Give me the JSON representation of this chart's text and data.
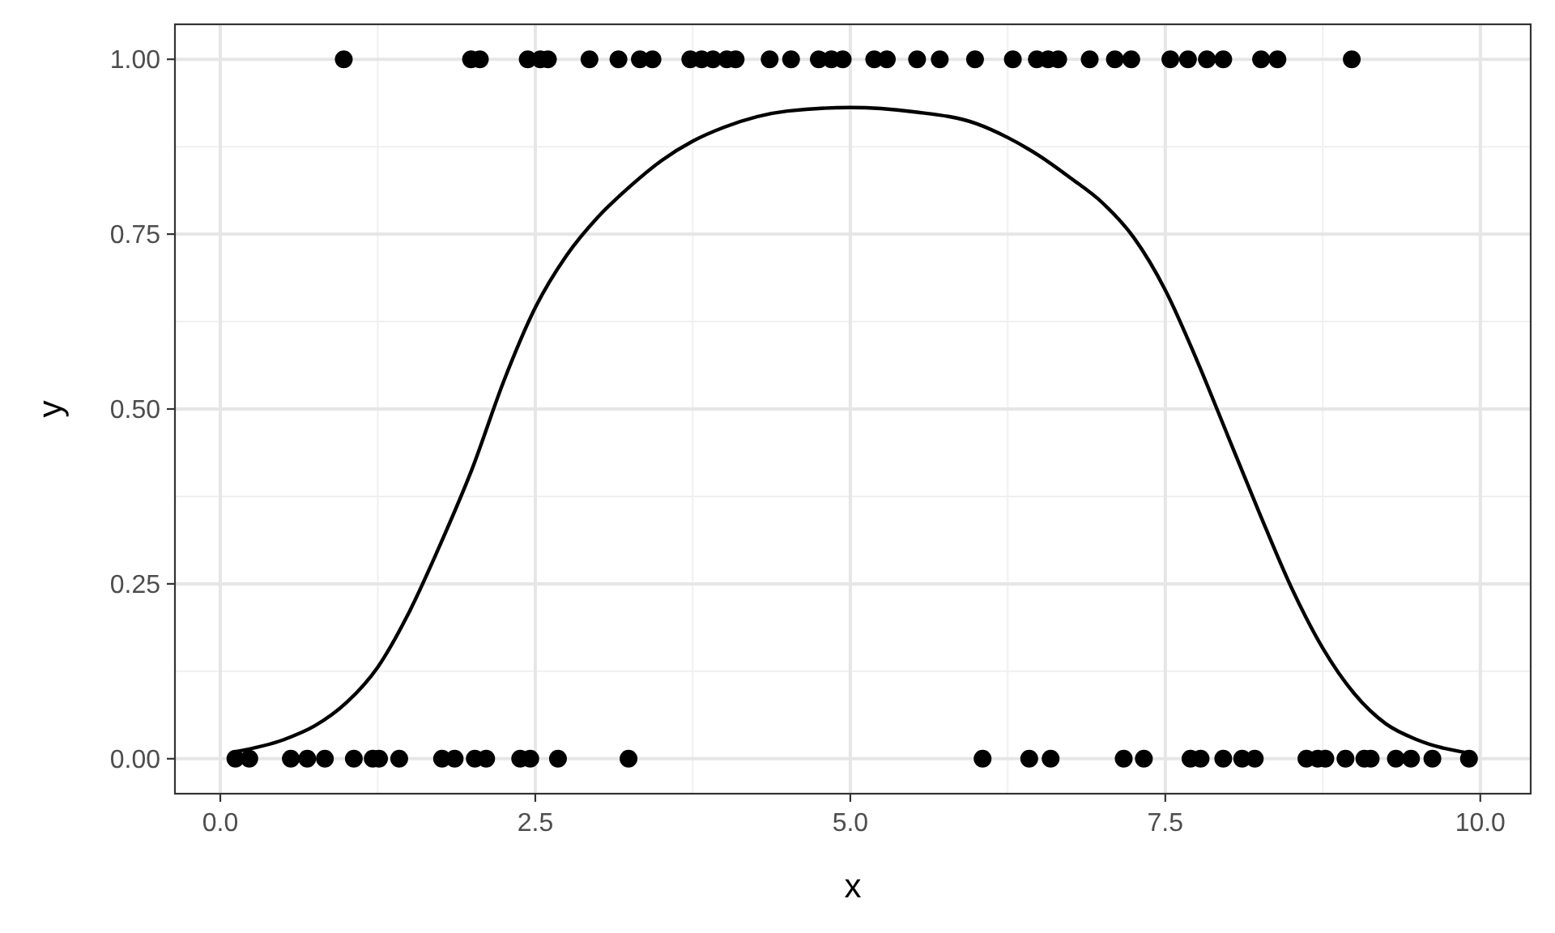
{
  "chart_data": {
    "type": "scatter",
    "xlabel": "x",
    "ylabel": "y",
    "xlim": [
      -0.36,
      10.4
    ],
    "ylim": [
      -0.05,
      1.05
    ],
    "xticks": [
      {
        "value": 0,
        "label": "0.0"
      },
      2.5,
      {
        "value": 5,
        "label": "5.0"
      },
      7.5,
      {
        "value": 10,
        "label": "10.0"
      }
    ],
    "yticks": [
      {
        "value": 0,
        "label": "0.00"
      },
      {
        "value": 0.25,
        "label": "0.25"
      },
      {
        "value": 0.5,
        "label": "0.50"
      },
      {
        "value": 0.75,
        "label": "0.75"
      },
      {
        "value": 1,
        "label": "1.00"
      }
    ],
    "grid": true,
    "series": [
      {
        "color": "#000000",
        "marker": "circle",
        "x": [
          0.12,
          0.23,
          0.56,
          0.69,
          0.83,
          1.06,
          1.21,
          1.26,
          1.42,
          1.76,
          1.86,
          2.02,
          2.11,
          2.38,
          2.46,
          2.68,
          3.24,
          6.05,
          6.42,
          6.59,
          7.17,
          7.33,
          7.7,
          7.78,
          7.96,
          8.11,
          8.21,
          8.62,
          8.71,
          8.77,
          8.93,
          9.08,
          9.13,
          9.33,
          9.45,
          9.62,
          9.91,
          0.98,
          1.99,
          2.06,
          2.44,
          2.54,
          2.6,
          2.93,
          3.16,
          3.33,
          3.43,
          3.73,
          3.82,
          3.91,
          4.02,
          4.09,
          4.36,
          4.53,
          4.75,
          4.85,
          4.94,
          5.19,
          5.29,
          5.53,
          5.71,
          5.99,
          6.29,
          6.48,
          6.57,
          6.65,
          6.9,
          7.1,
          7.23,
          7.54,
          7.68,
          7.83,
          7.96,
          8.26,
          8.39,
          8.98
        ],
        "values": [
          0,
          0,
          0,
          0,
          0,
          0,
          0,
          0,
          0,
          0,
          0,
          0,
          0,
          0,
          0,
          0,
          0,
          0,
          0,
          0,
          0,
          0,
          0,
          0,
          0,
          0,
          0,
          0,
          0,
          0,
          0,
          0,
          0,
          0,
          0,
          0,
          0,
          1,
          1,
          1,
          1,
          1,
          1,
          1,
          1,
          1,
          1,
          1,
          1,
          1,
          1,
          1,
          1,
          1,
          1,
          1,
          1,
          1,
          1,
          1,
          1,
          1,
          1,
          1,
          1,
          1,
          1,
          1,
          1,
          1,
          1,
          1,
          1,
          1,
          1,
          1
        ]
      },
      {
        "type": "line",
        "color": "#000000",
        "x": [
          0.12,
          0.5,
          0.75,
          1,
          1.25,
          1.5,
          1.75,
          2,
          2.25,
          2.5,
          2.75,
          3,
          3.25,
          3.5,
          3.75,
          4,
          4.5,
          5,
          5.5,
          6,
          6.25,
          6.5,
          6.75,
          7,
          7.25,
          7.5,
          7.75,
          8,
          8.25,
          8.5,
          8.75,
          9,
          9.25,
          9.5,
          9.91
        ],
        "values": [
          0.01,
          0.027,
          0.047,
          0.08,
          0.131,
          0.21,
          0.308,
          0.415,
          0.54,
          0.645,
          0.72,
          0.775,
          0.818,
          0.855,
          0.883,
          0.903,
          0.926,
          0.931,
          0.925,
          0.908,
          0.888,
          0.862,
          0.83,
          0.795,
          0.745,
          0.67,
          0.57,
          0.46,
          0.35,
          0.245,
          0.158,
          0.093,
          0.05,
          0.027,
          0.008
        ]
      }
    ]
  }
}
